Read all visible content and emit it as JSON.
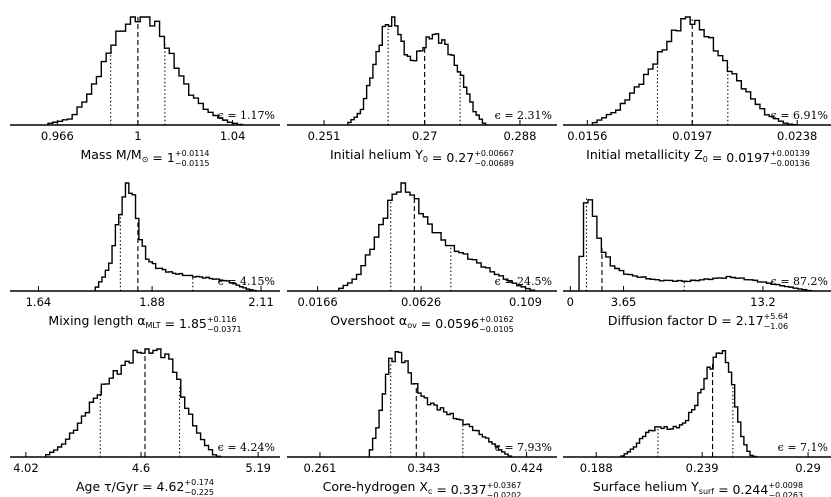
{
  "chart_data": [
    {
      "type": "histogram",
      "id": "mass",
      "title": "Mass M/M",
      "title_sub": "⊙",
      "median_str": "1",
      "err_plus": "+0.0114",
      "err_minus": "−0.0115",
      "epsilon": "ϵ = 1.17%",
      "ticks": [
        {
          "value": 0.966,
          "label": "0.966"
        },
        {
          "value": 1.0,
          "label": "1"
        },
        {
          "value": 1.04,
          "label": "1.04"
        }
      ],
      "xlim": [
        0.946,
        1.06
      ],
      "median": 1.0,
      "lower": 0.9885,
      "upper": 1.0114,
      "shape": [
        [
          0.962,
          0.01
        ],
        [
          0.972,
          0.06
        ],
        [
          0.98,
          0.3
        ],
        [
          0.99,
          0.78
        ],
        [
          0.995,
          0.93
        ],
        [
          1.0,
          1.0
        ],
        [
          1.004,
          0.99
        ],
        [
          1.008,
          0.93
        ],
        [
          1.015,
          0.6
        ],
        [
          1.022,
          0.3
        ],
        [
          1.03,
          0.12
        ],
        [
          1.038,
          0.03
        ],
        [
          1.044,
          0.0
        ]
      ],
      "bins": 40
    },
    {
      "type": "histogram",
      "id": "helium",
      "title": "Initial helium Y",
      "title_sub": "0",
      "median_str": "0.27",
      "err_plus": "+0.00667",
      "err_minus": "−0.00689",
      "epsilon": "ϵ = 2.31%",
      "ticks": [
        {
          "value": 0.251,
          "label": "0.251"
        },
        {
          "value": 0.27,
          "label": "0.27"
        },
        {
          "value": 0.288,
          "label": "0.288"
        }
      ],
      "xlim": [
        0.244,
        0.295
      ],
      "median": 0.27,
      "lower": 0.2631,
      "upper": 0.2767,
      "shape": [
        [
          0.2555,
          0.01
        ],
        [
          0.258,
          0.12
        ],
        [
          0.2605,
          0.55
        ],
        [
          0.2625,
          0.92
        ],
        [
          0.2645,
          0.97
        ],
        [
          0.266,
          0.72
        ],
        [
          0.2675,
          0.58
        ],
        [
          0.2695,
          0.7
        ],
        [
          0.2715,
          0.85
        ],
        [
          0.274,
          0.75
        ],
        [
          0.277,
          0.45
        ],
        [
          0.2795,
          0.12
        ],
        [
          0.2815,
          0.0
        ]
      ],
      "bins": 44
    },
    {
      "type": "histogram",
      "id": "metal",
      "title": "Initial metallicity Z",
      "title_sub": "0",
      "median_str": "0.0197",
      "err_plus": "+0.00139",
      "err_minus": "−0.00136",
      "epsilon": "ϵ = 6.91%",
      "ticks": [
        {
          "value": 0.0156,
          "label": "0.0156"
        },
        {
          "value": 0.0197,
          "label": "0.0197"
        },
        {
          "value": 0.0238,
          "label": "0.0238"
        }
      ],
      "xlim": [
        0.01465,
        0.0252
      ],
      "median": 0.0197,
      "lower": 0.01834,
      "upper": 0.02109,
      "shape": [
        [
          0.0158,
          0.01
        ],
        [
          0.0168,
          0.14
        ],
        [
          0.0178,
          0.42
        ],
        [
          0.0188,
          0.78
        ],
        [
          0.0193,
          0.96
        ],
        [
          0.0196,
          1.0
        ],
        [
          0.0202,
          0.86
        ],
        [
          0.021,
          0.57
        ],
        [
          0.0218,
          0.32
        ],
        [
          0.0226,
          0.1
        ],
        [
          0.0234,
          0.01
        ],
        [
          0.0238,
          0.0
        ]
      ],
      "bins": 44
    },
    {
      "type": "histogram",
      "id": "mlt",
      "title": "Mixing length α",
      "title_sub": "MLT",
      "median_str": "1.85",
      "err_plus": "+0.116",
      "err_minus": "−0.0371",
      "epsilon": "ϵ = 4.15%",
      "ticks": [
        {
          "value": 1.64,
          "label": "1.64"
        },
        {
          "value": 1.88,
          "label": "1.88"
        },
        {
          "value": 2.11,
          "label": "2.11"
        }
      ],
      "xlim": [
        1.58,
        2.15
      ],
      "median": 1.85,
      "lower": 1.813,
      "upper": 1.966,
      "shape": [
        [
          1.76,
          0.01
        ],
        [
          1.79,
          0.22
        ],
        [
          1.81,
          0.68
        ],
        [
          1.828,
          1.0
        ],
        [
          1.84,
          0.9
        ],
        [
          1.855,
          0.5
        ],
        [
          1.87,
          0.3
        ],
        [
          1.89,
          0.22
        ],
        [
          1.92,
          0.17
        ],
        [
          1.96,
          0.14
        ],
        [
          2.0,
          0.12
        ],
        [
          2.04,
          0.09
        ],
        [
          2.08,
          0.02
        ],
        [
          2.1,
          0.0
        ]
      ],
      "bins": 48
    },
    {
      "type": "histogram",
      "id": "ov",
      "title": "Overshoot α",
      "title_sub": "ov",
      "median_str": "0.0596",
      "err_plus": "+0.0162",
      "err_minus": "−0.0105",
      "epsilon": "ϵ = 24.5%",
      "ticks": [
        {
          "value": 0.0166,
          "label": "0.0166"
        },
        {
          "value": 0.0626,
          "label": "0.0626"
        },
        {
          "value": 0.109,
          "label": "0.109"
        }
      ],
      "xlim": [
        0.003,
        0.123
      ],
      "median": 0.0596,
      "lower": 0.0491,
      "upper": 0.0758,
      "shape": [
        [
          0.026,
          0.01
        ],
        [
          0.034,
          0.12
        ],
        [
          0.042,
          0.45
        ],
        [
          0.05,
          0.88
        ],
        [
          0.054,
          0.98
        ],
        [
          0.058,
          0.92
        ],
        [
          0.066,
          0.62
        ],
        [
          0.075,
          0.42
        ],
        [
          0.085,
          0.3
        ],
        [
          0.095,
          0.17
        ],
        [
          0.105,
          0.06
        ],
        [
          0.113,
          0.0
        ]
      ],
      "bins": 44
    },
    {
      "type": "histogram",
      "id": "diff",
      "title": "Diffusion factor D",
      "title_sub": "",
      "median_str": "2.17",
      "err_plus": "+5.64",
      "err_minus": "−1.06",
      "epsilon": "ϵ = 87.2%",
      "ticks": [
        {
          "value": 0,
          "label": "0"
        },
        {
          "value": 3.65,
          "label": "3.65"
        },
        {
          "value": 13.2,
          "label": "13.2"
        }
      ],
      "xlim": [
        -0.5,
        18.0
      ],
      "median": 2.17,
      "lower": 1.11,
      "upper": 7.81,
      "shape": [
        [
          0.6,
          0.01
        ],
        [
          0.9,
          0.6
        ],
        [
          1.2,
          1.0
        ],
        [
          1.6,
          0.7
        ],
        [
          2.2,
          0.38
        ],
        [
          3.0,
          0.22
        ],
        [
          4.0,
          0.15
        ],
        [
          6.0,
          0.1
        ],
        [
          8.0,
          0.09
        ],
        [
          9.5,
          0.11
        ],
        [
          11.0,
          0.13
        ],
        [
          12.5,
          0.1
        ],
        [
          14.5,
          0.05
        ],
        [
          16.5,
          0.0
        ]
      ],
      "bins": 52
    },
    {
      "type": "histogram",
      "id": "age",
      "title": "Age τ/Gyr",
      "title_sub": "",
      "median_str": "4.62",
      "err_plus": "+0.174",
      "err_minus": "−0.225",
      "epsilon": "ϵ = 4.24%",
      "ticks": [
        {
          "value": 4.02,
          "label": "4.02"
        },
        {
          "value": 4.6,
          "label": "4.6"
        },
        {
          "value": 5.19,
          "label": "5.19"
        }
      ],
      "xlim": [
        3.94,
        5.3
      ],
      "median": 4.62,
      "lower": 4.395,
      "upper": 4.794,
      "shape": [
        [
          4.12,
          0.01
        ],
        [
          4.2,
          0.1
        ],
        [
          4.28,
          0.28
        ],
        [
          4.36,
          0.52
        ],
        [
          4.44,
          0.72
        ],
        [
          4.52,
          0.85
        ],
        [
          4.58,
          0.97
        ],
        [
          4.63,
          1.0
        ],
        [
          4.7,
          0.98
        ],
        [
          4.76,
          0.88
        ],
        [
          4.82,
          0.5
        ],
        [
          4.9,
          0.18
        ],
        [
          4.97,
          0.02
        ],
        [
          5.0,
          0.0
        ]
      ],
      "bins": 44
    },
    {
      "type": "histogram",
      "id": "xc",
      "title": "Core-hydrogen X",
      "title_sub": "c",
      "median_str": "0.337",
      "err_plus": "+0.0367",
      "err_minus": "−0.0202",
      "epsilon": "ϵ = 7.93%",
      "ticks": [
        {
          "value": 0.261,
          "label": "0.261"
        },
        {
          "value": 0.343,
          "label": "0.343"
        },
        {
          "value": 0.424,
          "label": "0.424"
        }
      ],
      "xlim": [
        0.235,
        0.448
      ],
      "median": 0.337,
      "lower": 0.3168,
      "upper": 0.3737,
      "shape": [
        [
          0.3,
          0.01
        ],
        [
          0.308,
          0.35
        ],
        [
          0.315,
          0.85
        ],
        [
          0.322,
          0.97
        ],
        [
          0.328,
          0.9
        ],
        [
          0.335,
          0.68
        ],
        [
          0.345,
          0.52
        ],
        [
          0.36,
          0.42
        ],
        [
          0.38,
          0.28
        ],
        [
          0.395,
          0.15
        ],
        [
          0.405,
          0.05
        ],
        [
          0.412,
          0.0
        ]
      ],
      "bins": 44
    },
    {
      "type": "histogram",
      "id": "ysurf",
      "title": "Surface helium Y",
      "title_sub": "surf",
      "median_str": "0.244",
      "err_plus": "+0.0098",
      "err_minus": "−0.0263",
      "epsilon": "ϵ = 7.1%",
      "ticks": [
        {
          "value": 0.188,
          "label": "0.188"
        },
        {
          "value": 0.239,
          "label": "0.239"
        },
        {
          "value": 0.29,
          "label": "0.29"
        }
      ],
      "xlim": [
        0.172,
        0.302
      ],
      "median": 0.244,
      "lower": 0.2177,
      "upper": 0.2538,
      "shape": [
        [
          0.2,
          0.0
        ],
        [
          0.206,
          0.08
        ],
        [
          0.212,
          0.22
        ],
        [
          0.218,
          0.28
        ],
        [
          0.224,
          0.26
        ],
        [
          0.23,
          0.3
        ],
        [
          0.236,
          0.48
        ],
        [
          0.242,
          0.8
        ],
        [
          0.248,
          1.0
        ],
        [
          0.252,
          0.85
        ],
        [
          0.258,
          0.2
        ],
        [
          0.262,
          0.02
        ],
        [
          0.265,
          0.0
        ]
      ],
      "bins": 44
    }
  ]
}
